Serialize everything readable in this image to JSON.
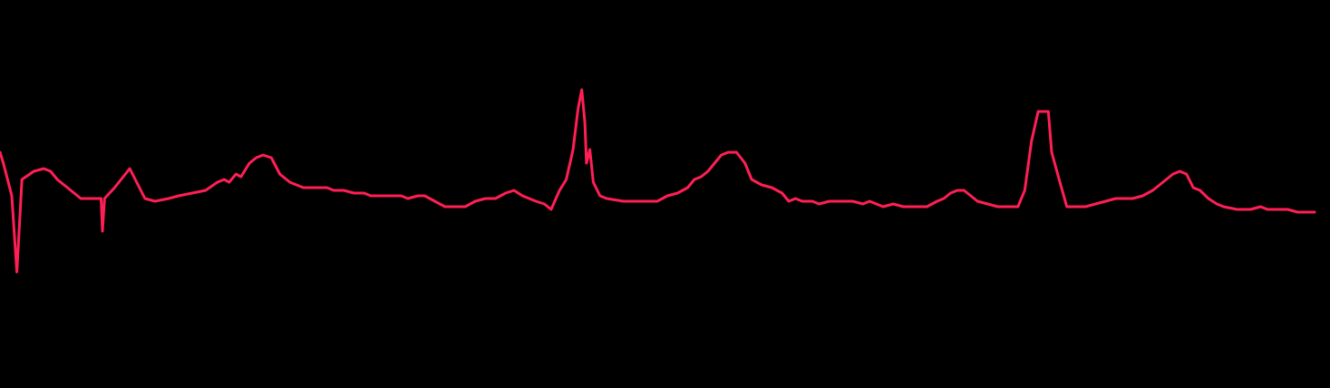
{
  "chart_data": {
    "type": "line",
    "title": "",
    "xlabel": "",
    "ylabel": "",
    "grid": false,
    "legend": "none",
    "background_color": "#000000",
    "ylim": [
      0,
      100
    ],
    "series": [
      {
        "color": "#ff1f55",
        "points": [
          [
            0.0,
            44
          ],
          [
            1.0,
            40
          ],
          [
            3.5,
            28
          ],
          [
            5.0,
            0
          ],
          [
            6.5,
            34
          ],
          [
            10.0,
            37
          ],
          [
            13.0,
            38
          ],
          [
            15.0,
            37
          ],
          [
            17.0,
            34
          ],
          [
            20.0,
            31
          ],
          [
            22.0,
            29
          ],
          [
            24.0,
            27
          ],
          [
            27.0,
            27
          ],
          [
            30.0,
            27
          ],
          [
            30.4,
            15
          ],
          [
            31.0,
            27
          ],
          [
            34.0,
            31
          ],
          [
            38.5,
            38
          ],
          [
            43.0,
            27
          ],
          [
            46.0,
            26
          ],
          [
            50.0,
            27
          ],
          [
            53.0,
            28
          ],
          [
            57.0,
            29
          ],
          [
            61.0,
            30
          ],
          [
            64.5,
            33
          ],
          [
            66.5,
            34
          ],
          [
            68.0,
            33
          ],
          [
            70.0,
            36
          ],
          [
            71.5,
            35
          ],
          [
            74.0,
            40
          ],
          [
            76.0,
            42
          ],
          [
            78.0,
            43
          ],
          [
            80.5,
            42
          ],
          [
            83.0,
            36
          ],
          [
            86.0,
            33
          ],
          [
            90.0,
            31
          ],
          [
            94.0,
            31
          ],
          [
            96.0,
            31
          ],
          [
            97.0,
            31
          ],
          [
            99.0,
            30
          ],
          [
            102.0,
            30
          ],
          [
            105.0,
            29
          ],
          [
            108.0,
            29
          ],
          [
            110.0,
            28
          ],
          [
            113.0,
            28
          ],
          [
            116.0,
            28
          ],
          [
            119.0,
            28
          ],
          [
            121.0,
            27
          ],
          [
            124.0,
            28
          ],
          [
            126.0,
            28
          ],
          [
            129.0,
            26
          ],
          [
            132.0,
            24
          ],
          [
            135.0,
            24
          ],
          [
            138.0,
            24
          ],
          [
            141.0,
            26
          ],
          [
            144.0,
            27
          ],
          [
            147.0,
            27
          ],
          [
            150.0,
            29
          ],
          [
            152.5,
            30
          ],
          [
            155.0,
            28
          ],
          [
            157.0,
            27
          ],
          [
            159.0,
            26
          ],
          [
            161.5,
            25
          ],
          [
            163.5,
            23
          ],
          [
            166.0,
            30
          ],
          [
            168.0,
            34
          ],
          [
            170.0,
            45
          ],
          [
            171.5,
            60
          ],
          [
            172.6,
            67
          ],
          [
            173.5,
            55
          ],
          [
            174.0,
            40
          ],
          [
            175.0,
            45
          ],
          [
            176.0,
            33
          ],
          [
            178.0,
            28
          ],
          [
            180.0,
            27
          ],
          [
            185.0,
            26
          ],
          [
            190.0,
            26
          ],
          [
            195.0,
            26
          ],
          [
            198.0,
            28
          ],
          [
            201.0,
            29
          ],
          [
            204.0,
            31
          ],
          [
            206.0,
            34
          ],
          [
            208.0,
            35
          ],
          [
            210.0,
            37
          ],
          [
            212.0,
            40
          ],
          [
            214.0,
            43
          ],
          [
            216.0,
            44
          ],
          [
            218.5,
            44
          ],
          [
            221.0,
            40
          ],
          [
            223.0,
            34
          ],
          [
            226.0,
            32
          ],
          [
            229.0,
            31
          ],
          [
            232.0,
            29
          ],
          [
            234.0,
            26
          ],
          [
            236.0,
            27
          ],
          [
            238.0,
            26
          ],
          [
            241.0,
            26
          ],
          [
            243.0,
            25
          ],
          [
            246.0,
            26
          ],
          [
            250.0,
            26
          ],
          [
            253.0,
            26
          ],
          [
            256.0,
            25
          ],
          [
            258.0,
            26
          ],
          [
            260.0,
            25
          ],
          [
            262.0,
            24
          ],
          [
            265.0,
            25
          ],
          [
            268.0,
            24
          ],
          [
            272.0,
            24
          ],
          [
            275.0,
            24
          ],
          [
            278.0,
            26
          ],
          [
            280.0,
            27
          ],
          [
            282.0,
            29
          ],
          [
            284.0,
            30
          ],
          [
            286.0,
            30
          ],
          [
            288.0,
            28
          ],
          [
            290.0,
            26
          ],
          [
            293.0,
            25
          ],
          [
            296.0,
            24
          ],
          [
            299.0,
            24
          ],
          [
            302.0,
            24
          ],
          [
            304.0,
            30
          ],
          [
            306.0,
            48
          ],
          [
            308.0,
            59
          ],
          [
            311.0,
            59
          ],
          [
            312.0,
            44
          ],
          [
            314.0,
            35
          ],
          [
            316.5,
            24
          ],
          [
            319.0,
            24
          ],
          [
            322.0,
            24
          ],
          [
            325.0,
            25
          ],
          [
            328.0,
            26
          ],
          [
            331.0,
            27
          ],
          [
            334.0,
            27
          ],
          [
            336.0,
            27
          ],
          [
            339.0,
            28
          ],
          [
            342.0,
            30
          ],
          [
            344.0,
            32
          ],
          [
            346.0,
            34
          ],
          [
            348.0,
            36
          ],
          [
            350.0,
            37
          ],
          [
            352.0,
            36
          ],
          [
            354.0,
            31
          ],
          [
            356.0,
            30
          ],
          [
            358.5,
            27
          ],
          [
            361.0,
            25
          ],
          [
            363.0,
            24
          ],
          [
            367.0,
            23
          ],
          [
            371.0,
            23
          ],
          [
            374.0,
            24
          ],
          [
            376.0,
            23
          ],
          [
            379.0,
            23
          ],
          [
            382.0,
            23
          ],
          [
            385.0,
            22
          ],
          [
            388.0,
            22
          ],
          [
            390.0,
            22
          ]
        ]
      }
    ]
  }
}
